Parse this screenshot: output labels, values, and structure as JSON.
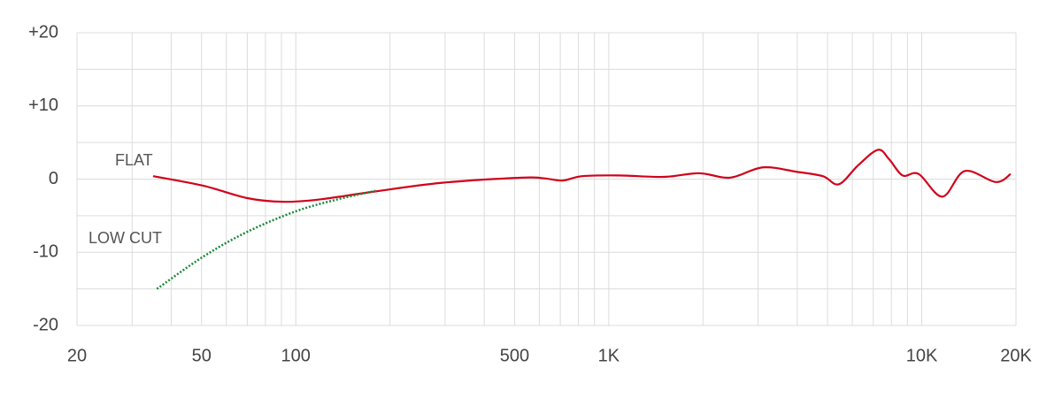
{
  "chart_data": {
    "type": "line",
    "xscale": "log",
    "xlim": [
      20,
      20000
    ],
    "ylim": [
      -20,
      20
    ],
    "xticks": [
      20,
      50,
      100,
      500,
      {
        "value": 1000,
        "label": "1K"
      },
      {
        "value": 10000,
        "label": "10K"
      },
      {
        "value": 20000,
        "label": "20K"
      }
    ],
    "x_minor_ticks": [
      30,
      40,
      60,
      70,
      80,
      90,
      200,
      300,
      400,
      600,
      700,
      800,
      900,
      2000,
      3000,
      4000,
      5000,
      6000,
      7000,
      8000,
      9000
    ],
    "yticks": [
      {
        "value": 20,
        "label": "+20"
      },
      {
        "value": 10,
        "label": "+10"
      },
      0,
      -10,
      -20
    ],
    "y_minor_ticks": [
      15,
      5,
      -5,
      -15
    ],
    "grid": true,
    "series": [
      {
        "name": "FLAT",
        "color": "#d0021b",
        "dash": false,
        "x": [
          35,
          50.6,
          70,
          91,
          118,
          175,
          294,
          528,
          622,
          713,
          822,
          1082,
          1496,
          1944,
          2443,
          3105,
          3981,
          4830,
          5434,
          6266,
          7244,
          7870,
          8690,
          9772,
          11640,
          13710,
          17220,
          19240
        ],
        "values": [
          0.4,
          -0.9,
          -2.6,
          -3.1,
          -2.8,
          -1.75,
          -0.5,
          0.2,
          0.1,
          -0.2,
          0.4,
          0.5,
          0.3,
          0.8,
          0.2,
          1.6,
          1.0,
          0.4,
          -0.7,
          1.9,
          4.0,
          2.7,
          0.5,
          0.7,
          -2.4,
          1.1,
          -0.4,
          0.7
        ]
      },
      {
        "name": "LOW CUT",
        "color": "#1a8a3a",
        "dash": true,
        "x": [
          36,
          50.6,
          70,
          100,
          135,
          180
        ],
        "values": [
          -15.0,
          -10.6,
          -7.2,
          -4.4,
          -2.8,
          -1.6
        ]
      }
    ]
  }
}
